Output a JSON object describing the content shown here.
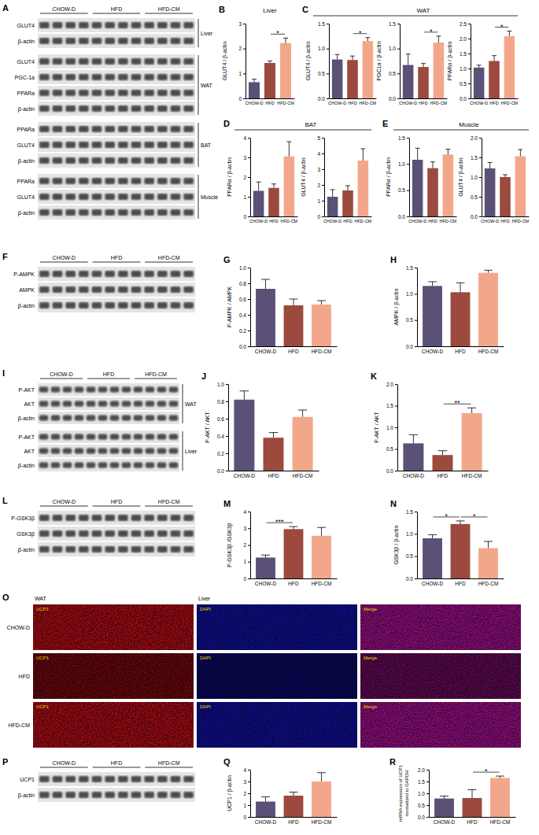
{
  "chart_data": [
    {
      "type": "bar",
      "ylabel": "GLUT4 / β-actin",
      "categories": [
        "CHOW-D",
        "HFD",
        "HFD-CM"
      ],
      "values": [
        0.65,
        1.42,
        2.22
      ],
      "errors": [
        0.12,
        0.08,
        0.2
      ],
      "colors": [
        "#5b5176",
        "#9b4a3d",
        "#f3a78a"
      ],
      "ylim": [
        0,
        3
      ],
      "yticks": [
        0,
        1,
        2,
        3
      ],
      "annotations": [
        {
          "text": "*",
          "from": 1,
          "to": 2
        }
      ]
    },
    {
      "type": "bar",
      "ylabel": "GLUT4 / β-actin",
      "categories": [
        "CHOW-D",
        "HFD",
        "HFD-CM"
      ],
      "values": [
        0.78,
        0.77,
        1.15
      ],
      "errors": [
        0.1,
        0.08,
        0.07
      ],
      "colors": [
        "#5b5176",
        "#9b4a3d",
        "#f3a78a"
      ],
      "ylim": [
        0,
        1.5
      ],
      "yticks": [
        {
          "value": 0,
          "label": "0.0"
        },
        0.5,
        {
          "value": 1,
          "label": "1.0"
        },
        1.5
      ],
      "annotations": [
        {
          "text": "*",
          "from": 1,
          "to": 2
        }
      ]
    },
    {
      "type": "bar",
      "ylabel": "PGC1α / β-actin",
      "categories": [
        "CHOW-D",
        "HFD",
        "HFD-CM"
      ],
      "values": [
        0.67,
        0.63,
        1.12
      ],
      "errors": [
        0.22,
        0.07,
        0.13
      ],
      "colors": [
        "#5b5176",
        "#9b4a3d",
        "#f3a78a"
      ],
      "ylim": [
        0,
        1.5
      ],
      "yticks": [
        {
          "value": 0,
          "label": "0.0"
        },
        0.5,
        {
          "value": 1,
          "label": "1.0"
        },
        1.5
      ],
      "annotations": [
        {
          "text": "*",
          "from": 1,
          "to": 2
        }
      ]
    },
    {
      "type": "bar",
      "ylabel": "PPARα / β-actin",
      "categories": [
        "CHOW-D",
        "HFD",
        "HFD-CM"
      ],
      "values": [
        1.03,
        1.25,
        2.08
      ],
      "errors": [
        0.08,
        0.18,
        0.17
      ],
      "colors": [
        "#5b5176",
        "#9b4a3d",
        "#f3a78a"
      ],
      "ylim": [
        0,
        2.5
      ],
      "yticks": [
        {
          "value": 0,
          "label": "0.0"
        },
        0.5,
        {
          "value": 1,
          "label": "1.0"
        },
        1.5,
        {
          "value": 2,
          "label": "2.0"
        },
        2.5
      ],
      "annotations": [
        {
          "text": "*",
          "from": 1,
          "to": 2
        }
      ]
    },
    {
      "type": "bar",
      "ylabel": "PPARα / β-actin",
      "categories": [
        "CHOW-D",
        "HFD",
        "HFD-CM"
      ],
      "values": [
        1.3,
        1.45,
        3.05
      ],
      "errors": [
        0.45,
        0.2,
        0.75
      ],
      "colors": [
        "#5b5176",
        "#9b4a3d",
        "#f3a78a"
      ],
      "ylim": [
        0,
        4
      ],
      "yticks": [
        0,
        1,
        2,
        3,
        4
      ],
      "annotations": []
    },
    {
      "type": "bar",
      "ylabel": "GLUT4 / β-actin",
      "categories": [
        "CHOW-D",
        "HFD",
        "HFD-CM"
      ],
      "values": [
        1.25,
        1.65,
        3.55
      ],
      "errors": [
        0.45,
        0.3,
        0.75
      ],
      "colors": [
        "#5b5176",
        "#9b4a3d",
        "#f3a78a"
      ],
      "ylim": [
        0,
        5
      ],
      "yticks": [
        0,
        1,
        2,
        3,
        4,
        5
      ],
      "annotations": []
    },
    {
      "type": "bar",
      "ylabel": "PPARα / β-actin",
      "categories": [
        "CHOW-D",
        "HFD",
        "HFD-CM"
      ],
      "values": [
        1.08,
        0.92,
        1.18
      ],
      "errors": [
        0.22,
        0.12,
        0.1
      ],
      "colors": [
        "#5b5176",
        "#9b4a3d",
        "#f3a78a"
      ],
      "ylim": [
        0,
        1.5
      ],
      "yticks": [
        {
          "value": 0,
          "label": "0.0"
        },
        0.5,
        {
          "value": 1,
          "label": "1.0"
        },
        1.5
      ],
      "annotations": []
    },
    {
      "type": "bar",
      "ylabel": "GLUT4 / β-actin",
      "categories": [
        "CHOW-D",
        "HFD",
        "HFD-CM"
      ],
      "values": [
        1.22,
        1.0,
        1.53
      ],
      "errors": [
        0.15,
        0.06,
        0.17
      ],
      "colors": [
        "#5b5176",
        "#9b4a3d",
        "#f3a78a"
      ],
      "ylim": [
        0,
        2
      ],
      "yticks": [
        {
          "value": 0,
          "label": "0.0"
        },
        0.5,
        {
          "value": 1,
          "label": "1.0"
        },
        1.5,
        {
          "value": 2,
          "label": "2.0"
        }
      ],
      "annotations": []
    },
    {
      "type": "bar",
      "panel_label": "G",
      "ylabel": "P-AMPK / AMPK",
      "categories": [
        "CHOW-D",
        "HFD",
        "HFD-CM"
      ],
      "values": [
        0.73,
        0.52,
        0.53
      ],
      "errors": [
        0.12,
        0.08,
        0.05
      ],
      "colors": [
        "#5b5176",
        "#9b4a3d",
        "#f3a78a"
      ],
      "ylim": [
        0,
        1
      ],
      "yticks": [
        {
          "value": 0,
          "label": "0.0"
        },
        0.2,
        0.4,
        0.6,
        0.8,
        {
          "value": 1,
          "label": "1.0"
        }
      ],
      "annotations": []
    },
    {
      "type": "bar",
      "panel_label": "H",
      "ylabel": "AMPK / β-actin",
      "categories": [
        "CHOW-D",
        "HFD",
        "HFD-CM"
      ],
      "values": [
        1.15,
        1.03,
        1.4
      ],
      "errors": [
        0.08,
        0.18,
        0.05
      ],
      "colors": [
        "#5b5176",
        "#9b4a3d",
        "#f3a78a"
      ],
      "ylim": [
        0,
        1.5
      ],
      "yticks": [
        {
          "value": 0,
          "label": "0.0"
        },
        0.5,
        {
          "value": 1,
          "label": "1.0"
        },
        1.5
      ],
      "annotations": []
    },
    {
      "type": "bar",
      "panel_label": "J",
      "ylabel": "P-AKT / AKT",
      "categories": [
        "CHOW-D",
        "HFD",
        "HFD-CM"
      ],
      "values": [
        0.82,
        0.38,
        0.62
      ],
      "errors": [
        0.1,
        0.06,
        0.08
      ],
      "colors": [
        "#5b5176",
        "#9b4a3d",
        "#f3a78a"
      ],
      "ylim": [
        0,
        1
      ],
      "yticks": [
        {
          "value": 0,
          "label": "0.0"
        },
        0.2,
        0.4,
        0.6,
        0.8,
        {
          "value": 1,
          "label": "1.0"
        }
      ],
      "annotations": []
    },
    {
      "type": "bar",
      "panel_label": "K",
      "ylabel": "P-AKT / AKT",
      "categories": [
        "CHOW-D",
        "HFD",
        "HFD-CM"
      ],
      "values": [
        0.63,
        0.36,
        1.33
      ],
      "errors": [
        0.2,
        0.1,
        0.12
      ],
      "colors": [
        "#5b5176",
        "#9b4a3d",
        "#f3a78a"
      ],
      "ylim": [
        0,
        2
      ],
      "yticks": [
        {
          "value": 0,
          "label": "0.0"
        },
        0.5,
        {
          "value": 1,
          "label": "1.0"
        },
        1.5,
        {
          "value": 2,
          "label": "2.0"
        }
      ],
      "annotations": [
        {
          "text": "**",
          "from": 1,
          "to": 2
        }
      ]
    },
    {
      "type": "bar",
      "panel_label": "M",
      "ylabel": "P-GSK3β /GSK3β",
      "categories": [
        "CHOW-D",
        "HFD",
        "HFD-CM"
      ],
      "values": [
        1.25,
        2.95,
        2.55
      ],
      "errors": [
        0.15,
        0.15,
        0.5
      ],
      "colors": [
        "#5b5176",
        "#9b4a3d",
        "#f3a78a"
      ],
      "ylim": [
        0,
        4
      ],
      "yticks": [
        0,
        1,
        2,
        3,
        4
      ],
      "annotations": [
        {
          "text": "***",
          "from": 0,
          "to": 1
        }
      ]
    },
    {
      "type": "bar",
      "panel_label": "N",
      "ylabel": "GSK3β / β-actin",
      "categories": [
        "CHOW-D",
        "HFD",
        "HFD-CM"
      ],
      "values": [
        0.9,
        1.22,
        0.68
      ],
      "errors": [
        0.08,
        0.07,
        0.15
      ],
      "colors": [
        "#5b5176",
        "#9b4a3d",
        "#f3a78a"
      ],
      "ylim": [
        0,
        1.5
      ],
      "yticks": [
        {
          "value": 0,
          "label": "0.0"
        },
        0.5,
        {
          "value": 1,
          "label": "1.0"
        },
        1.5
      ],
      "annotations": [
        {
          "text": "*",
          "from": 0,
          "to": 1
        },
        {
          "text": "*",
          "from": 1,
          "to": 2
        }
      ]
    },
    {
      "type": "bar",
      "panel_label": "Q",
      "ylabel": "UCP1 / β-actin",
      "categories": [
        "CHOW-D",
        "HFD",
        "HFD-CM"
      ],
      "values": [
        1.3,
        1.8,
        3.0
      ],
      "errors": [
        0.4,
        0.3,
        0.75
      ],
      "colors": [
        "#5b5176",
        "#9b4a3d",
        "#f3a78a"
      ],
      "ylim": [
        0,
        4
      ],
      "yticks": [
        0,
        1,
        2,
        3,
        4
      ],
      "annotations": []
    },
    {
      "type": "bar",
      "panel_label": "R",
      "ylabel": [
        "mRNA expression of UCP1",
        "normalized to GAPDH"
      ],
      "categories": [
        "CHOW-D",
        "HFD",
        "HFD-CM"
      ],
      "values": [
        0.78,
        0.8,
        1.65
      ],
      "errors": [
        0.1,
        0.35,
        0.08
      ],
      "colors": [
        "#5b5176",
        "#9b4a3d",
        "#f3a78a"
      ],
      "ylim": [
        0,
        2
      ],
      "yticks": [
        {
          "value": 0,
          "label": "0.0"
        },
        0.5,
        {
          "value": 1,
          "label": "1.0"
        },
        1.5,
        {
          "value": 2,
          "label": "2.0"
        }
      ],
      "annotations": [
        {
          "text": "*",
          "from": 1,
          "to": 2
        }
      ]
    }
  ],
  "chart_groups": [
    {
      "panel_label": "B",
      "title": "Liver",
      "charts": [
        0
      ]
    },
    {
      "panel_label": "C",
      "title": "WAT",
      "charts": [
        1,
        2,
        3
      ]
    },
    {
      "panel_label": "D",
      "title": "BAT",
      "charts": [
        4,
        5
      ]
    },
    {
      "panel_label": "E",
      "title": "Muscle",
      "charts": [
        6,
        7
      ]
    }
  ],
  "blots": [
    {
      "panel_label": "A",
      "groups": [
        "CHOW-D",
        "HFD",
        "HFD-CM"
      ],
      "sections": [
        {
          "tissue": "Liver",
          "rows": [
            "GLUT4",
            "β-actin"
          ]
        },
        {
          "tissue": "WAT",
          "rows": [
            "GLUT4",
            "PGC-1a",
            "PPARa",
            "β-actin"
          ]
        },
        {
          "tissue": "BAT",
          "rows": [
            "PPARa",
            "GLUT4",
            "β-actin"
          ]
        },
        {
          "tissue": "Muscle",
          "rows": [
            "PPARa",
            "GLUT4",
            "β-actin"
          ]
        }
      ]
    },
    {
      "panel_label": "F",
      "groups": [
        "CHOW-D",
        "HFD",
        "HFD-CM"
      ],
      "sections": [
        {
          "rows": [
            "P-AMPK",
            "AMPK",
            "β-actin"
          ]
        }
      ]
    },
    {
      "panel_label": "I",
      "groups": [
        "CHOW-D",
        "HFD",
        "HFD-CM"
      ],
      "sections": [
        {
          "tissue": "WAT",
          "rows": [
            "P-AKT",
            "AKT",
            "β-actin"
          ]
        },
        {
          "tissue": "Liver",
          "rows": [
            "P-AKT",
            "AKT",
            "β-actin"
          ]
        }
      ]
    },
    {
      "panel_label": "L",
      "groups": [
        "CHOW-D",
        "HFD",
        "HFD-CM"
      ],
      "sections": [
        {
          "rows": [
            "P-GSK3β",
            "GSK3β",
            "β-actin"
          ]
        }
      ]
    },
    {
      "panel_label": "P",
      "groups": [
        "CHOW-D",
        "HFD",
        "HFD-CM"
      ],
      "sections": [
        {
          "rows": [
            "UCP1",
            "β-actin"
          ]
        }
      ]
    }
  ],
  "images": {
    "panel_label": "O",
    "tissue_labels": [
      "WAT",
      "Liver"
    ],
    "channels": [
      "UCP1",
      "DAPI",
      "Merge"
    ],
    "rows": [
      "CHOW-D",
      "HFD",
      "HFD-CM"
    ]
  }
}
